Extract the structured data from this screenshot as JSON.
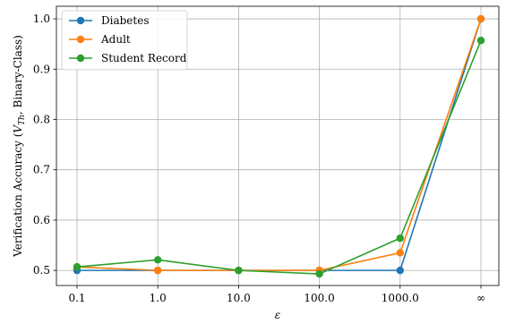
{
  "chart_data": {
    "type": "line",
    "title": "",
    "xlabel": "ε",
    "ylabel": "Verification Accuracy (V_Th, Binary-Class)",
    "ylabel_parts": {
      "pre": "Verification Accuracy (",
      "var": "V",
      "sub": "Th",
      "post": ", Binary-Class)"
    },
    "categories": [
      "0.1",
      "1.0",
      "10.0",
      "100.0",
      "1000.0",
      "∞"
    ],
    "ylim": [
      0.47,
      1.025
    ],
    "yticks": [
      0.5,
      0.6,
      0.7,
      0.8,
      0.9,
      1.0
    ],
    "ytick_labels": [
      "0.5",
      "0.6",
      "0.7",
      "0.8",
      "0.9",
      "1.0"
    ],
    "grid": true,
    "legend_position": "top-left",
    "series": [
      {
        "name": "Diabetes",
        "color": "#1f77b4",
        "values": [
          0.5,
          0.5,
          0.5,
          0.5,
          0.5,
          1.0
        ]
      },
      {
        "name": "Adult",
        "color": "#ff7f0e",
        "values": [
          0.507,
          0.5,
          0.5,
          0.5,
          0.535,
          1.0
        ]
      },
      {
        "name": "Student Record",
        "color": "#2ca02c",
        "values": [
          0.507,
          0.521,
          0.5,
          0.493,
          0.564,
          0.957
        ]
      }
    ]
  }
}
